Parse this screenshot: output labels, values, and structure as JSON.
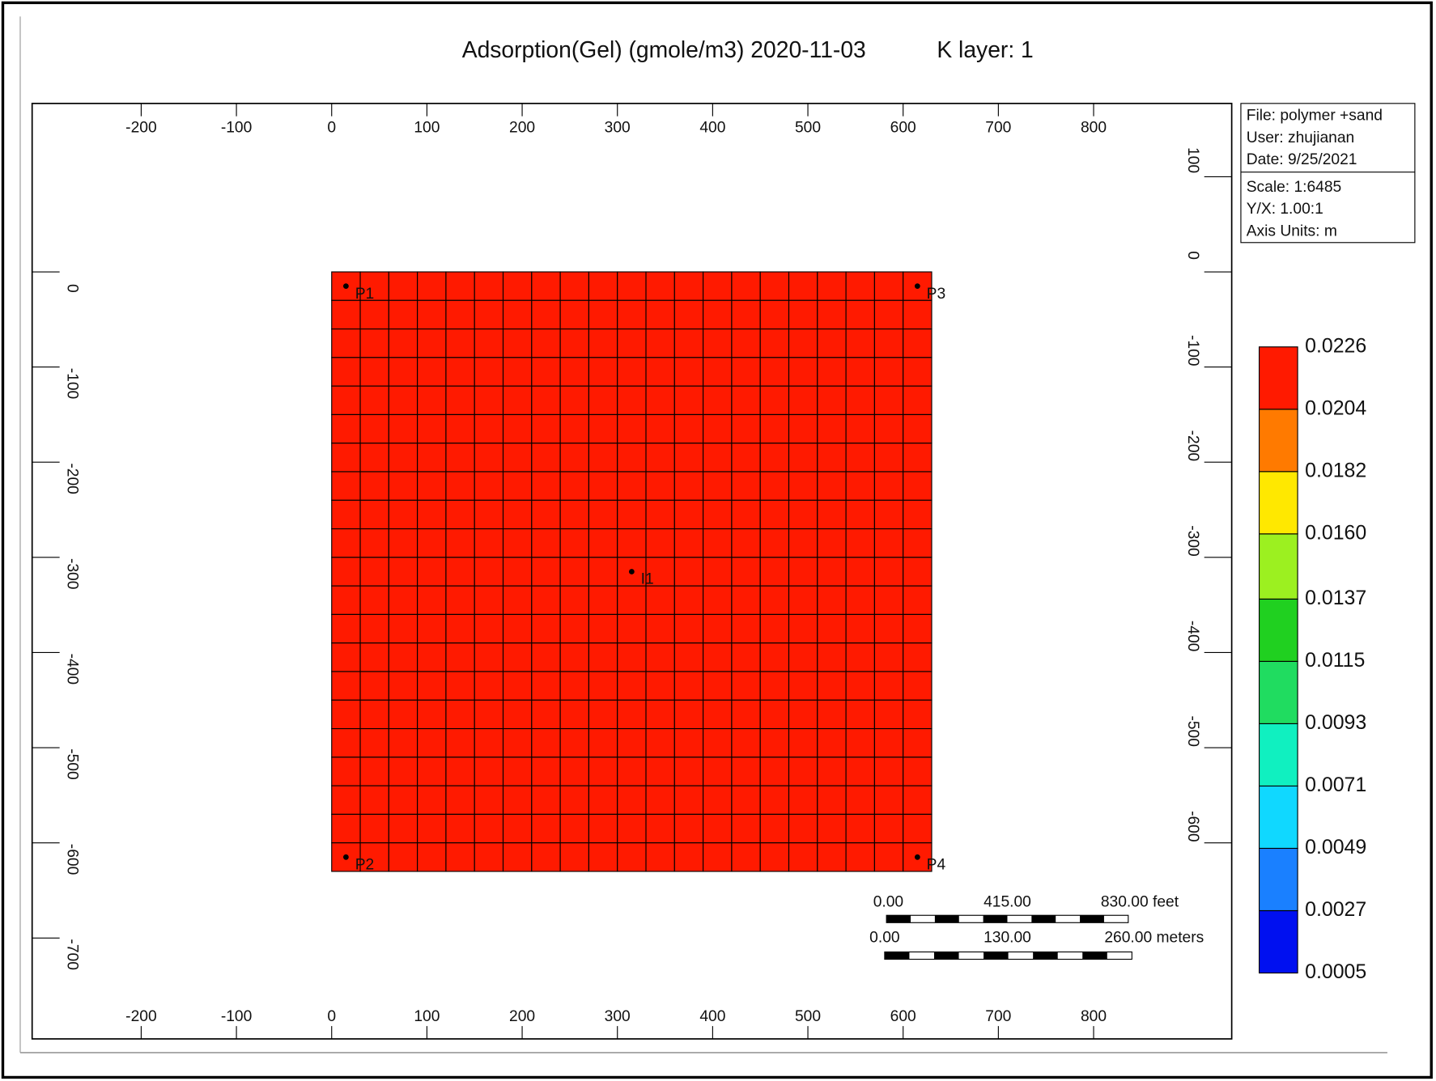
{
  "chart_data": {
    "type": "heatmap",
    "title": "Adsorption(Gel) (gmole/m3) 2020-11-03",
    "subtitle": "K layer: 1",
    "xlim": [
      -314.5,
      945
    ],
    "ylim": [
      -806,
      177
    ],
    "y2lim": [
      -806,
      177
    ],
    "xticks": [
      -200,
      -100,
      0,
      100,
      200,
      300,
      400,
      500,
      600,
      700,
      800
    ],
    "yticks": [
      0,
      -100,
      -200,
      -300,
      -400,
      -500,
      -600,
      -700
    ],
    "y2ticks": [
      100,
      0,
      -100,
      -200,
      -300,
      -400,
      -500,
      -600
    ],
    "x_edges": [
      0,
      30,
      60,
      90,
      120,
      150,
      180,
      210,
      240,
      270,
      300,
      330,
      360,
      390,
      420,
      450,
      480,
      510,
      540,
      570,
      600,
      630
    ],
    "y_edges": [
      0,
      -30,
      -60,
      -90,
      -120,
      -150,
      -180,
      -210,
      -240,
      -270,
      -300,
      -330,
      -360,
      -390,
      -420,
      -450,
      -480,
      -510,
      -540,
      -570,
      -600,
      -630
    ],
    "values": [
      [
        0.0226,
        0.0226,
        0.0226,
        0.0226,
        0.0226,
        0.0226,
        0.0226,
        0.0226,
        0.0226,
        0.0226,
        0.0226,
        0.0226,
        0.0226,
        0.0226,
        0.0226,
        0.0226,
        0.0226,
        0.0226,
        0.0226,
        0.0226,
        0.0226
      ],
      [
        0.0226,
        0.0226,
        0.0226,
        0.0226,
        0.0226,
        0.0226,
        0.0226,
        0.0226,
        0.0226,
        0.0226,
        0.0226,
        0.0226,
        0.0226,
        0.0226,
        0.0226,
        0.0226,
        0.0226,
        0.0226,
        0.0226,
        0.0226,
        0.0226
      ],
      [
        0.0226,
        0.0226,
        0.0226,
        0.0226,
        0.0226,
        0.0226,
        0.0226,
        0.0226,
        0.0226,
        0.0226,
        0.0226,
        0.0226,
        0.0226,
        0.0226,
        0.0226,
        0.0226,
        0.0226,
        0.0226,
        0.0226,
        0.0226,
        0.0226
      ],
      [
        0.0226,
        0.0226,
        0.0226,
        0.0226,
        0.0226,
        0.0226,
        0.0226,
        0.0226,
        0.0226,
        0.0226,
        0.0226,
        0.0226,
        0.0226,
        0.0226,
        0.0226,
        0.0226,
        0.0226,
        0.0226,
        0.0226,
        0.0226,
        0.0226
      ],
      [
        0.0226,
        0.0226,
        0.0226,
        0.0226,
        0.0226,
        0.0226,
        0.0226,
        0.0226,
        0.0226,
        0.0226,
        0.0226,
        0.0226,
        0.0226,
        0.0226,
        0.0226,
        0.0226,
        0.0226,
        0.0226,
        0.0226,
        0.0226,
        0.0226
      ],
      [
        0.0226,
        0.0226,
        0.0226,
        0.0226,
        0.0226,
        0.0226,
        0.0226,
        0.0226,
        0.0226,
        0.0226,
        0.0226,
        0.0226,
        0.0226,
        0.0226,
        0.0226,
        0.0226,
        0.0226,
        0.0226,
        0.0226,
        0.0226,
        0.0226
      ],
      [
        0.0226,
        0.0226,
        0.0226,
        0.0226,
        0.0226,
        0.0226,
        0.0226,
        0.0226,
        0.0226,
        0.0226,
        0.0226,
        0.0226,
        0.0226,
        0.0226,
        0.0226,
        0.0226,
        0.0226,
        0.0226,
        0.0226,
        0.0226,
        0.0226
      ],
      [
        0.0226,
        0.0226,
        0.0226,
        0.0226,
        0.0226,
        0.0226,
        0.0226,
        0.0226,
        0.0226,
        0.0226,
        0.0226,
        0.0226,
        0.0226,
        0.0226,
        0.0226,
        0.0226,
        0.0226,
        0.0226,
        0.0226,
        0.0226,
        0.0226
      ],
      [
        0.0226,
        0.0226,
        0.0226,
        0.0226,
        0.0226,
        0.0226,
        0.0226,
        0.0226,
        0.0226,
        0.0226,
        0.0226,
        0.0226,
        0.0226,
        0.0226,
        0.0226,
        0.0226,
        0.0226,
        0.0226,
        0.0226,
        0.0226,
        0.0226
      ],
      [
        0.0226,
        0.0226,
        0.0226,
        0.0226,
        0.0226,
        0.0226,
        0.0226,
        0.0226,
        0.0226,
        0.0226,
        0.0226,
        0.0226,
        0.0226,
        0.0226,
        0.0226,
        0.0226,
        0.0226,
        0.0226,
        0.0226,
        0.0226,
        0.0226
      ],
      [
        0.0226,
        0.0226,
        0.0226,
        0.0226,
        0.0226,
        0.0226,
        0.0226,
        0.0226,
        0.0226,
        0.0226,
        0.0226,
        0.0226,
        0.0226,
        0.0226,
        0.0226,
        0.0226,
        0.0226,
        0.0226,
        0.0226,
        0.0226,
        0.0226
      ],
      [
        0.0226,
        0.0226,
        0.0226,
        0.0226,
        0.0226,
        0.0226,
        0.0226,
        0.0226,
        0.0226,
        0.0226,
        0.0226,
        0.0226,
        0.0226,
        0.0226,
        0.0226,
        0.0226,
        0.0226,
        0.0226,
        0.0226,
        0.0226,
        0.0226
      ],
      [
        0.0226,
        0.0226,
        0.0226,
        0.0226,
        0.0226,
        0.0226,
        0.0226,
        0.0226,
        0.0226,
        0.0226,
        0.0226,
        0.0226,
        0.0226,
        0.0226,
        0.0226,
        0.0226,
        0.0226,
        0.0226,
        0.0226,
        0.0226,
        0.0226
      ],
      [
        0.0226,
        0.0226,
        0.0226,
        0.0226,
        0.0226,
        0.0226,
        0.0226,
        0.0226,
        0.0226,
        0.0226,
        0.0226,
        0.0226,
        0.0226,
        0.0226,
        0.0226,
        0.0226,
        0.0226,
        0.0226,
        0.0226,
        0.0226,
        0.0226
      ],
      [
        0.0226,
        0.0226,
        0.0226,
        0.0226,
        0.0226,
        0.0226,
        0.0226,
        0.0226,
        0.0226,
        0.0226,
        0.0226,
        0.0226,
        0.0226,
        0.0226,
        0.0226,
        0.0226,
        0.0226,
        0.0226,
        0.0226,
        0.0226,
        0.0226
      ],
      [
        0.0226,
        0.0226,
        0.0226,
        0.0226,
        0.0226,
        0.0226,
        0.0226,
        0.0226,
        0.0226,
        0.0226,
        0.0226,
        0.0226,
        0.0226,
        0.0226,
        0.0226,
        0.0226,
        0.0226,
        0.0226,
        0.0226,
        0.0226,
        0.0226
      ],
      [
        0.0226,
        0.0226,
        0.0226,
        0.0226,
        0.0226,
        0.0226,
        0.0226,
        0.0226,
        0.0226,
        0.0226,
        0.0226,
        0.0226,
        0.0226,
        0.0226,
        0.0226,
        0.0226,
        0.0226,
        0.0226,
        0.0226,
        0.0226,
        0.0226
      ],
      [
        0.0226,
        0.0226,
        0.0226,
        0.0226,
        0.0226,
        0.0226,
        0.0226,
        0.0226,
        0.0226,
        0.0226,
        0.0226,
        0.0226,
        0.0226,
        0.0226,
        0.0226,
        0.0226,
        0.0226,
        0.0226,
        0.0226,
        0.0226,
        0.0226
      ],
      [
        0.0226,
        0.0226,
        0.0226,
        0.0226,
        0.0226,
        0.0226,
        0.0226,
        0.0226,
        0.0226,
        0.0226,
        0.0226,
        0.0226,
        0.0226,
        0.0226,
        0.0226,
        0.0226,
        0.0226,
        0.0226,
        0.0226,
        0.0226,
        0.0226
      ],
      [
        0.0226,
        0.0226,
        0.0226,
        0.0226,
        0.0226,
        0.0226,
        0.0226,
        0.0226,
        0.0226,
        0.0226,
        0.0226,
        0.0226,
        0.0226,
        0.0226,
        0.0226,
        0.0226,
        0.0226,
        0.0226,
        0.0226,
        0.0226,
        0.0226
      ],
      [
        0.0226,
        0.0226,
        0.0226,
        0.0226,
        0.0226,
        0.0226,
        0.0226,
        0.0226,
        0.0226,
        0.0226,
        0.0226,
        0.0226,
        0.0226,
        0.0226,
        0.0226,
        0.0226,
        0.0226,
        0.0226,
        0.0226,
        0.0226,
        0.0226
      ]
    ],
    "wells": [
      {
        "name": "P1",
        "x": 15,
        "y": -15
      },
      {
        "name": "P3",
        "x": 615,
        "y": -15
      },
      {
        "name": "I1",
        "x": 315,
        "y": -315
      },
      {
        "name": "P2",
        "x": 15,
        "y": -615
      },
      {
        "name": "P4",
        "x": 615,
        "y": -615
      }
    ],
    "colorbar": {
      "levels": [
        {
          "value": 0.0005,
          "label": "0.0005"
        },
        {
          "value": 0.0027,
          "label": "0.0027"
        },
        {
          "value": 0.0049,
          "label": "0.0049"
        },
        {
          "value": 0.0071,
          "label": "0.0071"
        },
        {
          "value": 0.0093,
          "label": "0.0093"
        },
        {
          "value": 0.0115,
          "label": "0.0115"
        },
        {
          "value": 0.0137,
          "label": "0.0137"
        },
        {
          "value": 0.016,
          "label": "0.0160"
        },
        {
          "value": 0.0182,
          "label": "0.0182"
        },
        {
          "value": 0.0204,
          "label": "0.0204"
        },
        {
          "value": 0.0226,
          "label": "0.0226"
        }
      ],
      "colors": [
        "#0010f0",
        "#1a80ff",
        "#10d8ff",
        "#10f0c0",
        "#20dc60",
        "#20d020",
        "#9cf020",
        "#ffe800",
        "#ff7a00",
        "#ff1a00"
      ]
    },
    "info": {
      "file": "File: polymer +sand",
      "user": "User:  zhujianan",
      "date": "Date: 9/25/2021",
      "scale": "Scale: 1:6485",
      "yx": "Y/X: 1.00:1",
      "units": "Axis Units: m"
    },
    "scale_bar": {
      "feet": [
        "0.00",
        "415.00",
        "830.00 feet"
      ],
      "meters": [
        "0.00",
        "130.00",
        "260.00 meters"
      ]
    }
  }
}
